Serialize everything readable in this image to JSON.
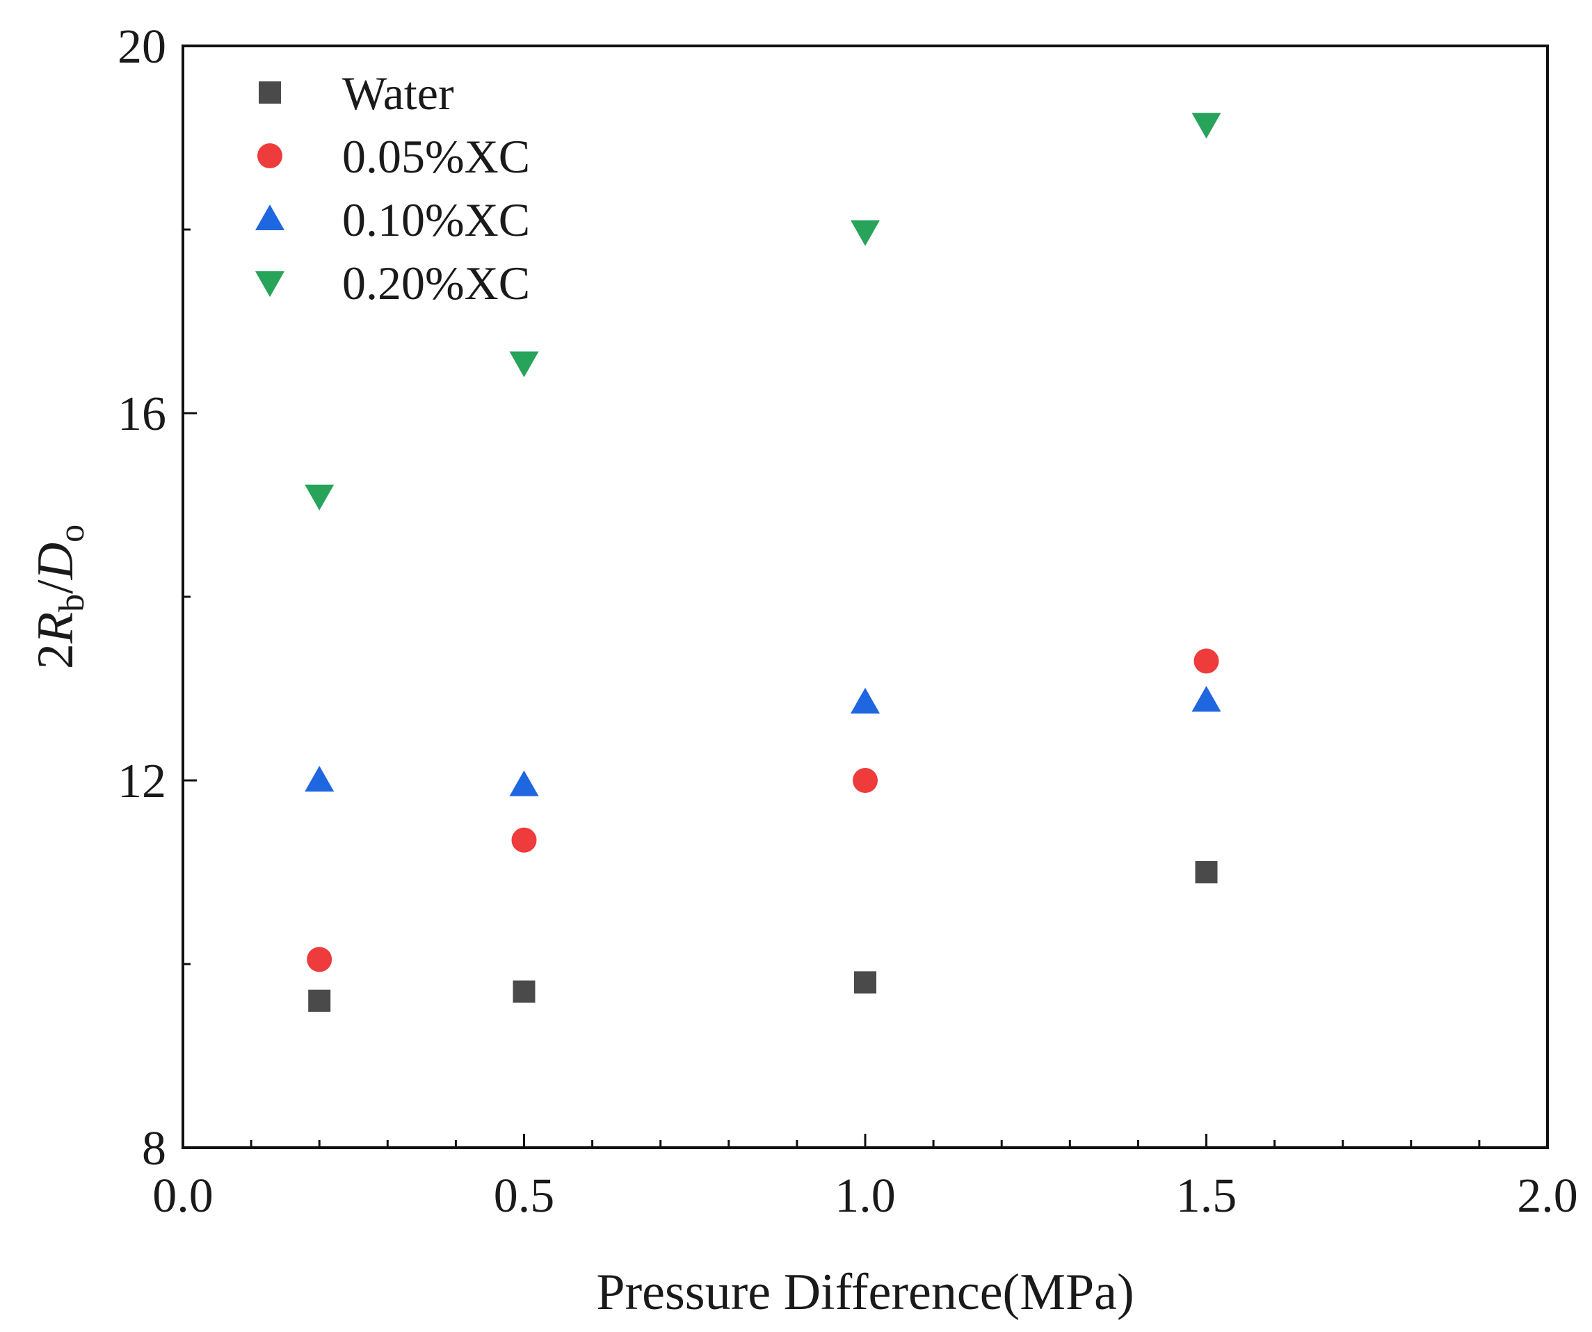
{
  "chart_data": {
    "type": "scatter",
    "xlabel": "Pressure Difference(MPa)",
    "ylabel": {
      "base": "2",
      "R": "R",
      "R_sub": "b",
      "slash": "/",
      "D": "D",
      "D_sub": "o"
    },
    "xlim": [
      0.0,
      2.0
    ],
    "ylim": [
      8,
      20
    ],
    "x_major_ticks": [
      0.0,
      0.5,
      1.0,
      1.5,
      2.0
    ],
    "x_tick_labels": [
      "0.0",
      "0.5",
      "1.0",
      "1.5",
      "2.0"
    ],
    "x_minor_step": 0.1,
    "y_major_ticks": [
      8,
      12,
      16,
      20
    ],
    "y_tick_labels": [
      "8",
      "12",
      "16",
      "20"
    ],
    "y_minor_step": 2,
    "grid": false,
    "legend_position": "top-left",
    "series": [
      {
        "name": "Water",
        "marker": "square",
        "color": "#4a4a4a",
        "x": [
          0.2,
          0.5,
          1.0,
          1.5
        ],
        "y": [
          9.6,
          9.7,
          9.8,
          11.0
        ]
      },
      {
        "name": "0.05%XC",
        "marker": "circle",
        "color": "#ee3b3b",
        "x": [
          0.2,
          0.5,
          1.0,
          1.5
        ],
        "y": [
          10.05,
          11.35,
          12.0,
          13.3
        ]
      },
      {
        "name": "0.10%XC",
        "marker": "triangle-up",
        "color": "#1f67e0",
        "x": [
          0.2,
          0.5,
          1.0,
          1.5
        ],
        "y": [
          12.0,
          11.95,
          12.85,
          12.87
        ]
      },
      {
        "name": "0.20%XC",
        "marker": "triangle-down",
        "color": "#27a35a",
        "x": [
          0.2,
          0.5,
          1.0,
          1.5
        ],
        "y": [
          15.1,
          16.55,
          17.98,
          19.15
        ]
      }
    ]
  }
}
